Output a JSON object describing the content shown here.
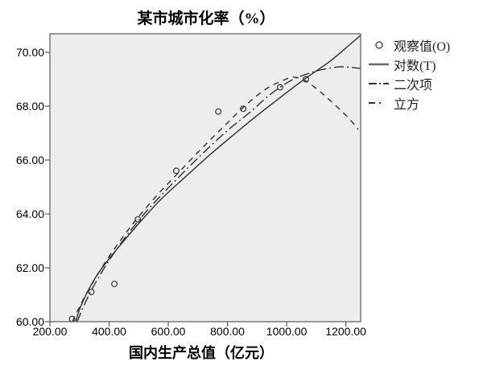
{
  "title": "某市城市化率（%）",
  "axes": {
    "x_label": "国内生产总值（亿元）",
    "x_tick_labels": [
      "200.00",
      "400.00",
      "600.00",
      "800.00",
      "1000.00",
      "1200.00"
    ],
    "y_tick_labels": [
      "60.00",
      "62.00",
      "64.00",
      "66.00",
      "68.00",
      "70.00"
    ]
  },
  "legend": {
    "items": [
      {
        "label": "观察值(O)",
        "marker": "circle-marker"
      },
      {
        "label": "对数(T)",
        "marker": "solid-line-marker"
      },
      {
        "label": "二次项",
        "marker": "dashdot-line-marker"
      },
      {
        "label": "立方",
        "marker": "dash-dot-marker"
      }
    ]
  },
  "colors": {
    "plot_background": "#ededed",
    "frame": "#595959",
    "curve": "#2e2e2e",
    "legend_solid_line": "#666666",
    "marker_stroke": "#333333"
  },
  "chart_data": {
    "type": "scatter",
    "title": "某市城市化率（%）",
    "xlabel": "国内生产总值（亿元）",
    "ylabel": "",
    "xlim": [
      200,
      1250
    ],
    "ylim": [
      60,
      70.7
    ],
    "x_tick_values": [
      200,
      400,
      600,
      800,
      1000,
      1200
    ],
    "y_tick_values": [
      60,
      62,
      64,
      66,
      68,
      70
    ],
    "grid": false,
    "legend_position": "outside-top-right",
    "series": [
      {
        "name": "观察值(O)",
        "kind": "scatter",
        "style": "circle",
        "points": [
          [
            275,
            60.1
          ],
          [
            340,
            61.1
          ],
          [
            418,
            61.4
          ],
          [
            497,
            63.8
          ],
          [
            627,
            65.6
          ],
          [
            769,
            67.8
          ],
          [
            853,
            67.9
          ],
          [
            978,
            68.7
          ],
          [
            1065,
            69.0
          ]
        ]
      },
      {
        "name": "对数(T)",
        "kind": "line",
        "style": "solid",
        "points": [
          [
            287,
            60.0
          ],
          [
            303,
            60.54
          ],
          [
            331,
            61.19
          ],
          [
            363,
            61.79
          ],
          [
            404,
            62.39
          ],
          [
            453,
            63.04
          ],
          [
            507,
            63.73
          ],
          [
            575,
            64.54
          ],
          [
            657,
            65.37
          ],
          [
            739,
            66.18
          ],
          [
            820,
            66.93
          ],
          [
            902,
            67.67
          ],
          [
            983,
            68.36
          ],
          [
            1065,
            69.04
          ],
          [
            1147,
            69.67
          ],
          [
            1215,
            70.3
          ],
          [
            1250,
            70.63
          ]
        ]
      },
      {
        "name": "二次项",
        "kind": "line",
        "style": "dashdot",
        "points": [
          [
            292,
            60.0
          ],
          [
            325,
            60.84
          ],
          [
            363,
            61.61
          ],
          [
            407,
            62.39
          ],
          [
            461,
            63.22
          ],
          [
            521,
            64.03
          ],
          [
            589,
            64.84
          ],
          [
            663,
            65.67
          ],
          [
            733,
            66.42
          ],
          [
            807,
            67.16
          ],
          [
            875,
            67.76
          ],
          [
            943,
            68.42
          ],
          [
            1016,
            68.96
          ],
          [
            1084,
            69.25
          ],
          [
            1139,
            69.4
          ],
          [
            1188,
            69.46
          ],
          [
            1250,
            69.4
          ]
        ]
      },
      {
        "name": "立方",
        "kind": "line",
        "style": "dashed",
        "points": [
          [
            276,
            60.0
          ],
          [
            309,
            60.75
          ],
          [
            347,
            61.49
          ],
          [
            391,
            62.27
          ],
          [
            440,
            63.04
          ],
          [
            494,
            63.82
          ],
          [
            562,
            64.69
          ],
          [
            636,
            65.55
          ],
          [
            712,
            66.42
          ],
          [
            788,
            67.25
          ],
          [
            861,
            68.03
          ],
          [
            929,
            68.63
          ],
          [
            989,
            68.96
          ],
          [
            1025,
            69.08
          ],
          [
            1065,
            68.93
          ],
          [
            1106,
            68.6
          ],
          [
            1147,
            68.21
          ],
          [
            1188,
            67.79
          ],
          [
            1220,
            67.43
          ],
          [
            1242,
            67.13
          ]
        ]
      }
    ]
  }
}
